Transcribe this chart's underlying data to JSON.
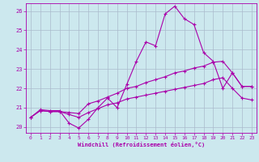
{
  "xlabel": "Windchill (Refroidissement éolien,°C)",
  "xlim": [
    -0.5,
    23.5
  ],
  "ylim": [
    19.7,
    26.4
  ],
  "xticks": [
    0,
    1,
    2,
    3,
    4,
    5,
    6,
    7,
    8,
    9,
    10,
    11,
    12,
    13,
    14,
    15,
    16,
    17,
    18,
    19,
    20,
    21,
    22,
    23
  ],
  "yticks": [
    20,
    21,
    22,
    23,
    24,
    25,
    26
  ],
  "bg_color": "#cce8ee",
  "line_color": "#aa00aa",
  "grid_color": "#aabbcc",
  "curve1_x": [
    0,
    1,
    2,
    3,
    4,
    5,
    6,
    7,
    8,
    9,
    10,
    11,
    12,
    13,
    14,
    15,
    16,
    17,
    18,
    19,
    20,
    21,
    22,
    23
  ],
  "curve1_y": [
    20.5,
    20.9,
    20.85,
    20.85,
    20.2,
    19.95,
    20.4,
    21.0,
    21.5,
    21.0,
    22.2,
    23.4,
    24.4,
    24.2,
    25.85,
    26.25,
    25.6,
    25.3,
    23.85,
    23.4,
    22.0,
    22.8,
    22.1,
    22.1
  ],
  "curve2_x": [
    0,
    1,
    2,
    3,
    4,
    5,
    6,
    7,
    8,
    9,
    10,
    11,
    12,
    13,
    14,
    15,
    16,
    17,
    18,
    19,
    20,
    21,
    22,
    23
  ],
  "curve2_y": [
    20.5,
    20.85,
    20.8,
    20.8,
    20.75,
    20.7,
    21.2,
    21.35,
    21.55,
    21.75,
    22.0,
    22.1,
    22.3,
    22.45,
    22.6,
    22.8,
    22.9,
    23.05,
    23.15,
    23.35,
    23.4,
    22.8,
    22.1,
    22.1
  ],
  "curve3_x": [
    0,
    1,
    2,
    3,
    4,
    5,
    6,
    7,
    8,
    9,
    10,
    11,
    12,
    13,
    14,
    15,
    16,
    17,
    18,
    19,
    20,
    21,
    22,
    23
  ],
  "curve3_y": [
    20.5,
    20.85,
    20.8,
    20.8,
    20.65,
    20.5,
    20.75,
    20.95,
    21.15,
    21.25,
    21.45,
    21.55,
    21.65,
    21.75,
    21.85,
    21.95,
    22.05,
    22.15,
    22.25,
    22.45,
    22.55,
    22.0,
    21.5,
    21.4
  ]
}
